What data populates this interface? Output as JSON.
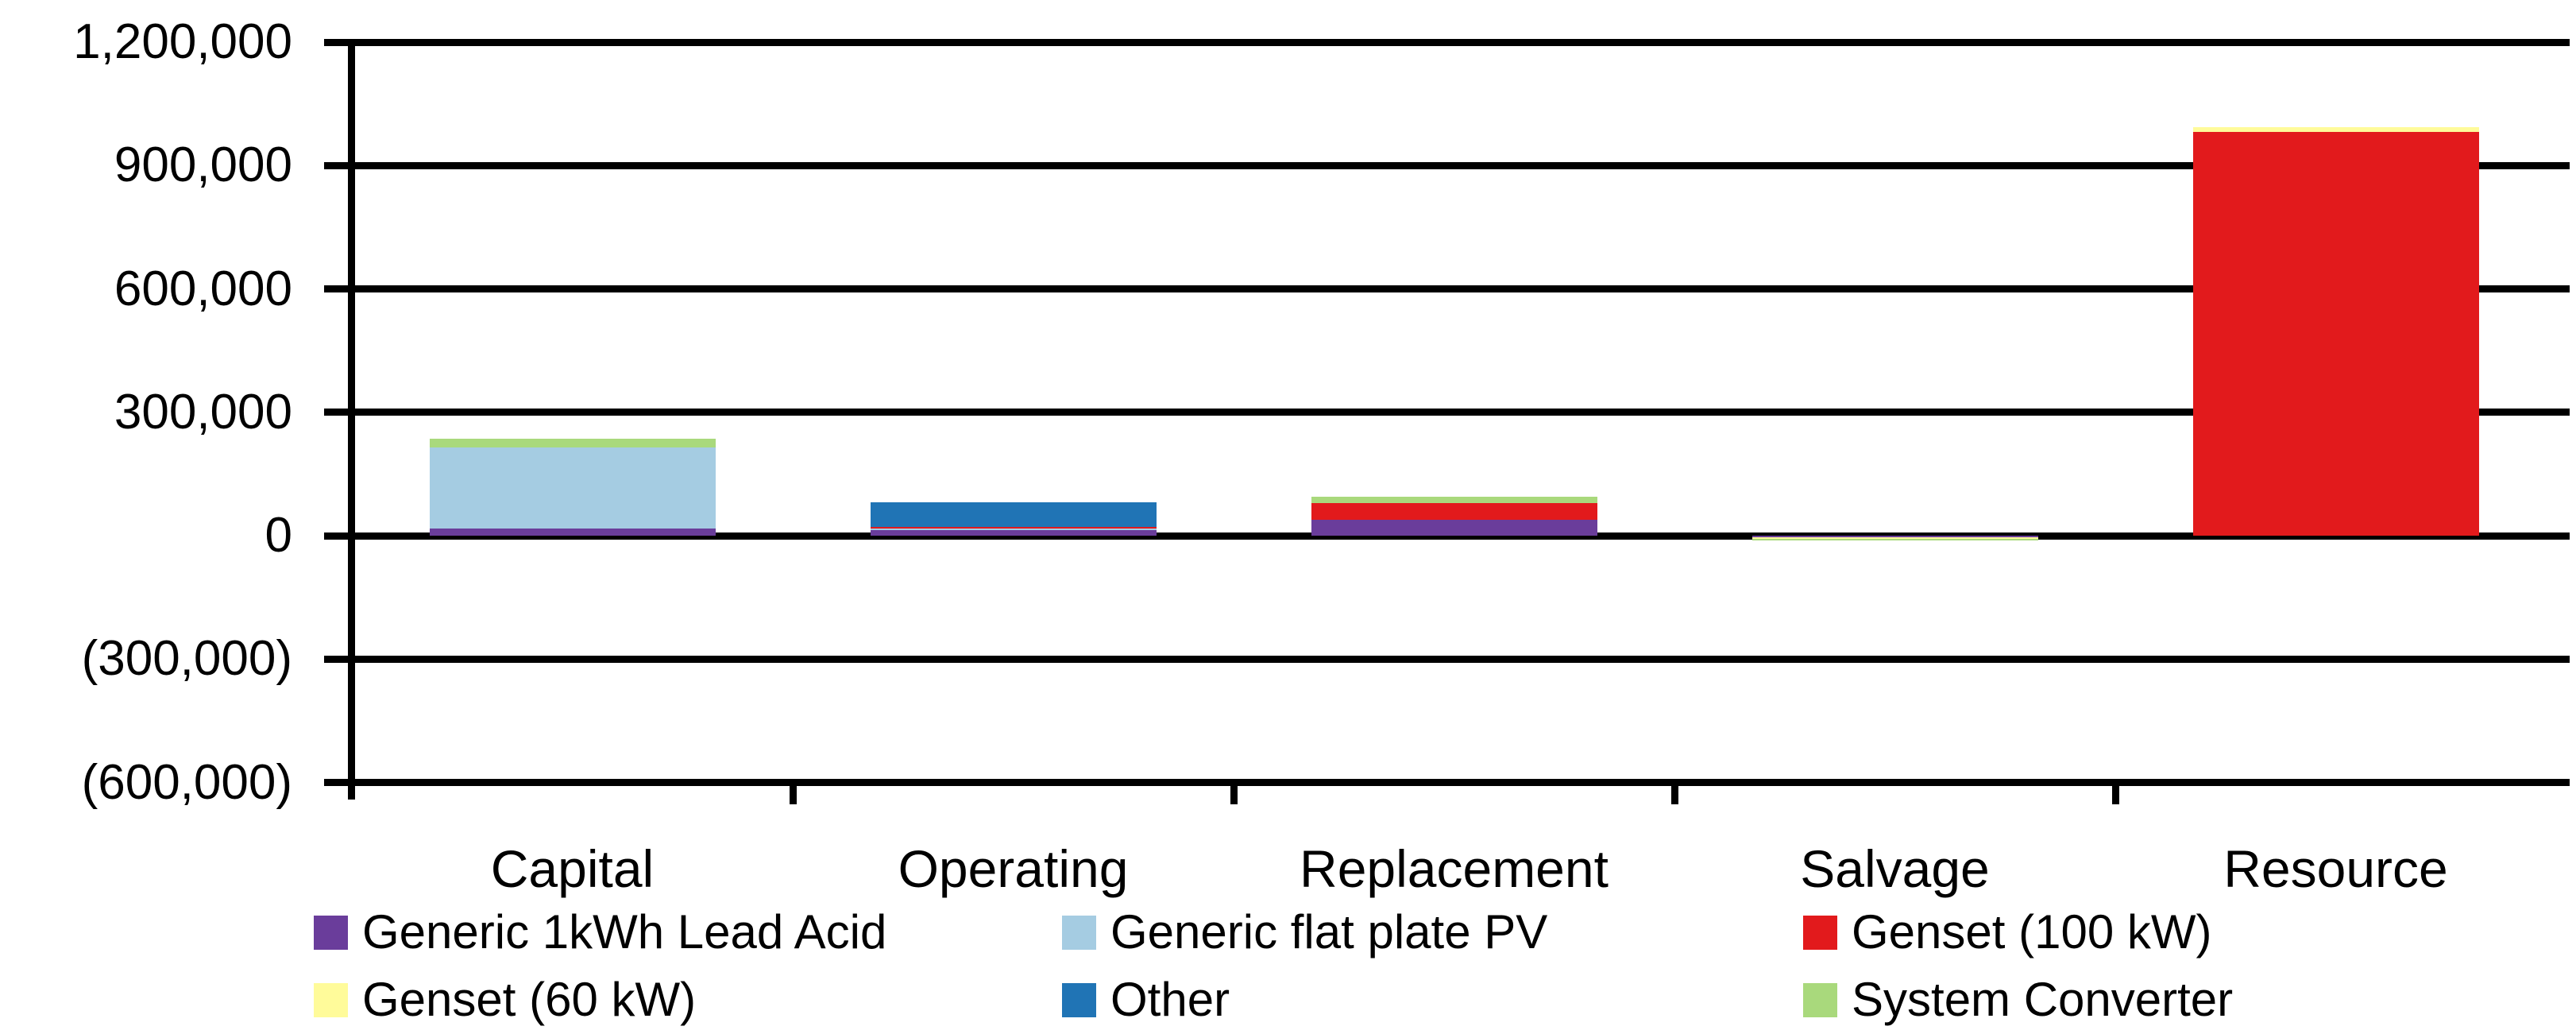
{
  "chart_data": {
    "type": "bar",
    "stacked": true,
    "title": "",
    "categories": [
      "Capital",
      "Operating",
      "Replacement",
      "Salvage",
      "Resource"
    ],
    "series": [
      {
        "name": "Generic 1kWh Lead Acid",
        "color": "#6A3D9B",
        "values": [
          17000,
          13000,
          39000,
          -4000,
          0
        ]
      },
      {
        "name": "Generic flat plate PV",
        "color": "#A5CCE2",
        "values": [
          197000,
          4000,
          0,
          0,
          0
        ]
      },
      {
        "name": "Genset (100 kW)",
        "color": "#E21A1C",
        "values": [
          0,
          4000,
          41000,
          0,
          981000
        ]
      },
      {
        "name": "Genset (60 kW)",
        "color": "#FFFB9A",
        "values": [
          0,
          0,
          0,
          -3000,
          13000
        ]
      },
      {
        "name": "Other",
        "color": "#2074B5",
        "values": [
          0,
          60000,
          0,
          0,
          0
        ]
      },
      {
        "name": "System Converter",
        "color": "#A9D97C",
        "values": [
          22000,
          0,
          14000,
          -4500,
          0
        ]
      }
    ],
    "ylim": [
      -600000,
      1200000
    ],
    "ytick_step": 300000,
    "ytick_labels": [
      "1,200,000",
      "900,000",
      "600,000",
      "300,000",
      "0",
      "(300,000)",
      "(600,000)"
    ],
    "grid": "horizontal",
    "legend_position": "bottom",
    "axis_color": "#000000",
    "text_color": "#000000"
  }
}
